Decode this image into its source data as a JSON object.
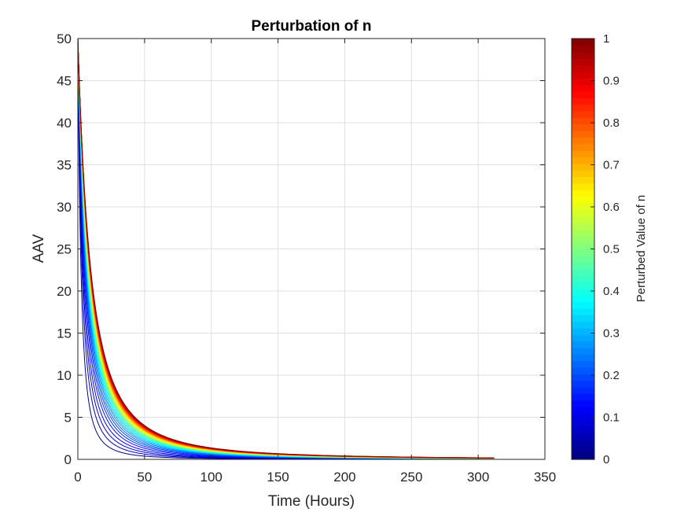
{
  "chart_data": {
    "type": "line",
    "title": "Perturbation of n",
    "xlabel": "Time (Hours)",
    "ylabel": "AAV",
    "xlim": [
      0,
      350
    ],
    "ylim": [
      0,
      50
    ],
    "xticks": [
      0,
      50,
      100,
      150,
      200,
      250,
      300,
      350
    ],
    "yticks": [
      0,
      5,
      10,
      15,
      20,
      25,
      30,
      35,
      40,
      45,
      50
    ],
    "x_tick_labels": [
      "0",
      "50",
      "100",
      "150",
      "200",
      "250",
      "300",
      "350"
    ],
    "y_tick_labels": [
      "0",
      "5",
      "10",
      "15",
      "20",
      "25",
      "30",
      "35",
      "40",
      "45",
      "50"
    ],
    "grid": true,
    "colormap": "jet",
    "x_end": 312,
    "series_description": "family of decay curves AAV(t) = 50 / (1 + t / tau_n)^2, one per perturbed value of n, colored by n",
    "series": [
      {
        "n": 0.02,
        "initial": 50,
        "tau": 4.8
      },
      {
        "n": 0.05,
        "initial": 50,
        "tau": 6.3
      },
      {
        "n": 0.08,
        "initial": 50,
        "tau": 7.5
      },
      {
        "n": 0.11,
        "initial": 50,
        "tau": 8.6
      },
      {
        "n": 0.14,
        "initial": 50,
        "tau": 9.7
      },
      {
        "n": 0.17,
        "initial": 50,
        "tau": 10.6
      },
      {
        "n": 0.2,
        "initial": 50,
        "tau": 11.4
      },
      {
        "n": 0.23,
        "initial": 50,
        "tau": 12.1
      },
      {
        "n": 0.26,
        "initial": 50,
        "tau": 12.8
      },
      {
        "n": 0.3,
        "initial": 50,
        "tau": 13.4
      },
      {
        "n": 0.34,
        "initial": 50,
        "tau": 14.0
      },
      {
        "n": 0.38,
        "initial": 50,
        "tau": 14.5
      },
      {
        "n": 0.42,
        "initial": 50,
        "tau": 15.0
      },
      {
        "n": 0.46,
        "initial": 50,
        "tau": 15.4
      },
      {
        "n": 0.5,
        "initial": 50,
        "tau": 15.8
      },
      {
        "n": 0.54,
        "initial": 50,
        "tau": 16.2
      },
      {
        "n": 0.58,
        "initial": 50,
        "tau": 16.6
      },
      {
        "n": 0.62,
        "initial": 50,
        "tau": 17.0
      },
      {
        "n": 0.66,
        "initial": 50,
        "tau": 17.3
      },
      {
        "n": 0.7,
        "initial": 50,
        "tau": 17.6
      },
      {
        "n": 0.74,
        "initial": 50,
        "tau": 17.9
      },
      {
        "n": 0.78,
        "initial": 50,
        "tau": 18.2
      },
      {
        "n": 0.82,
        "initial": 50,
        "tau": 18.5
      },
      {
        "n": 0.86,
        "initial": 50,
        "tau": 18.8
      },
      {
        "n": 0.9,
        "initial": 50,
        "tau": 19.0
      },
      {
        "n": 0.94,
        "initial": 50,
        "tau": 19.3
      },
      {
        "n": 0.98,
        "initial": 50,
        "tau": 19.6
      },
      {
        "n": 1.0,
        "initial": 50,
        "tau": 19.8
      }
    ],
    "colorbar": {
      "label": "Perturbed Value of n",
      "range": [
        0,
        1
      ],
      "ticks": [
        0,
        0.1,
        0.2,
        0.3,
        0.4,
        0.5,
        0.6,
        0.7,
        0.8,
        0.9,
        1
      ],
      "tick_labels": [
        "0",
        "0.1",
        "0.2",
        "0.3",
        "0.4",
        "0.5",
        "0.6",
        "0.7",
        "0.8",
        "0.9",
        "1"
      ],
      "levels": 64
    }
  }
}
